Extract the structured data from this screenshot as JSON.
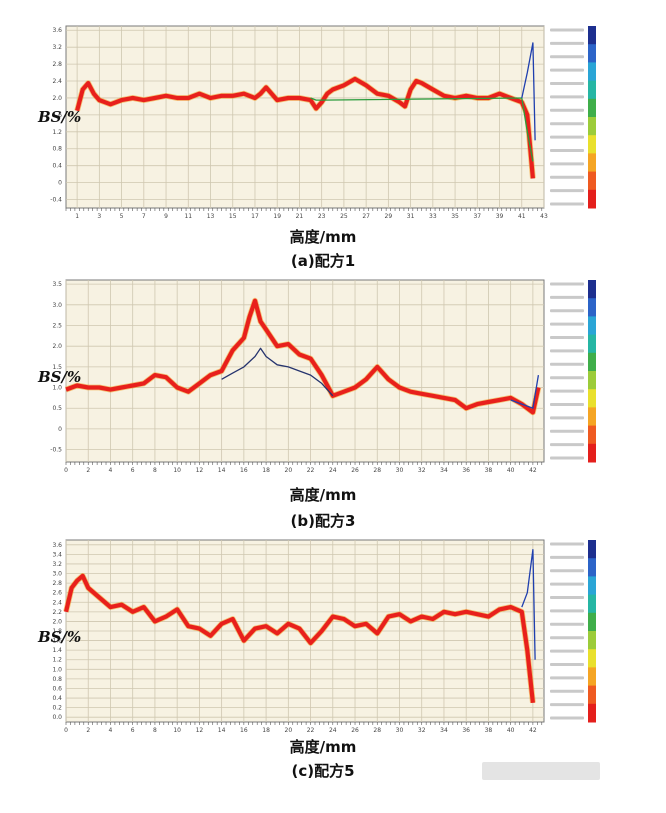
{
  "panels": [
    {
      "caption": "(a)配方1",
      "y_label": "BS/%",
      "x_label": "高度/mm",
      "chart_data": {
        "type": "line",
        "xlim": [
          0,
          43
        ],
        "ylim": [
          -0.6,
          3.7
        ],
        "x_ticks": [
          1,
          3,
          5,
          7,
          9,
          11,
          13,
          15,
          17,
          19,
          21,
          23,
          25,
          27,
          29,
          31,
          33,
          35,
          37,
          39,
          41,
          43
        ],
        "x_tick_labels": [
          "1",
          "3",
          "5",
          "7",
          "9",
          "11",
          "13",
          "15",
          "17",
          "19",
          "21",
          "23",
          "25",
          "27",
          "29",
          "31",
          "33",
          "35",
          "37",
          "39",
          "41",
          "43"
        ],
        "y_ticks": [
          -0.4,
          0,
          0.4,
          0.8,
          1.2,
          1.6,
          2.0,
          2.4,
          2.8,
          3.2,
          3.6
        ],
        "y_tick_labels": [
          "-0.4",
          "0",
          "0.4",
          "0.8",
          "1.2",
          "1.6",
          "2.0",
          "2.4",
          "2.8",
          "3.2",
          "3.6"
        ],
        "series": [
          {
            "color": "#e8201c",
            "x": [
              1,
              1.5,
              2,
              2.5,
              3,
              3.5,
              4,
              5,
              6,
              7,
              8,
              9,
              10,
              11,
              12,
              13,
              14,
              15,
              16,
              17,
              17.5,
              18,
              19,
              20,
              21,
              22,
              22.5,
              23,
              23.5,
              24,
              25,
              26,
              27,
              28,
              29,
              30,
              30.5,
              31,
              31.5,
              32,
              33,
              34,
              35,
              36,
              37,
              38,
              39,
              40,
              41,
              41.5,
              42
            ],
            "y": [
              1.7,
              2.2,
              2.35,
              2.1,
              1.95,
              1.9,
              1.85,
              1.95,
              2.0,
              1.95,
              2.0,
              2.05,
              2.0,
              2.0,
              2.1,
              2.0,
              2.05,
              2.05,
              2.1,
              2.0,
              2.1,
              2.25,
              1.95,
              2.0,
              2.0,
              1.95,
              1.75,
              1.9,
              2.1,
              2.2,
              2.3,
              2.45,
              2.3,
              2.1,
              2.05,
              1.9,
              1.8,
              2.2,
              2.4,
              2.35,
              2.2,
              2.05,
              2.0,
              2.05,
              2.0,
              2.0,
              2.1,
              2.0,
              1.9,
              1.6,
              0.1
            ]
          },
          {
            "color": "#2a9c3c",
            "x": [
              22,
              22.5,
              23,
              41,
              41.5,
              42
            ],
            "y": [
              2.0,
              1.95,
              1.95,
              2.0,
              1.2,
              0.5
            ]
          },
          {
            "color": "#1f3fae",
            "x": [
              41,
              41.5,
              42,
              42.2
            ],
            "y": [
              2.0,
              2.6,
              3.3,
              1.0
            ]
          }
        ]
      }
    },
    {
      "caption": "(b)配方3",
      "y_label": "BS/%",
      "x_label": "高度/mm",
      "chart_data": {
        "type": "line",
        "xlim": [
          0,
          43
        ],
        "ylim": [
          -0.8,
          3.6
        ],
        "x_ticks": [
          0,
          2,
          4,
          6,
          8,
          10,
          12,
          14,
          16,
          18,
          20,
          22,
          24,
          26,
          28,
          30,
          32,
          34,
          36,
          38,
          40,
          42
        ],
        "x_tick_labels": [
          "0",
          "2",
          "4",
          "6",
          "8",
          "10",
          "12",
          "14",
          "16",
          "18",
          "20",
          "22",
          "24",
          "26",
          "28",
          "30",
          "32",
          "34",
          "36",
          "38",
          "40",
          "42"
        ],
        "y_ticks": [
          -0.5,
          0,
          0.5,
          1.0,
          1.5,
          2.0,
          2.5,
          3.0,
          3.5
        ],
        "y_tick_labels": [
          "-0.5",
          "0",
          "0.5",
          "1.0",
          "1.5",
          "2.0",
          "2.5",
          "3.0",
          "3.5"
        ],
        "series": [
          {
            "color": "#e8201c",
            "x": [
              0,
              1,
              2,
              3,
              4,
              5,
              6,
              7,
              8,
              9,
              10,
              11,
              12,
              13,
              14,
              15,
              16,
              16.5,
              17,
              17.5,
              18,
              19,
              20,
              21,
              22,
              23,
              24,
              25,
              26,
              27,
              28,
              29,
              30,
              31,
              32,
              33,
              34,
              35,
              36,
              37,
              38,
              39,
              40,
              41,
              42,
              42.5
            ],
            "y": [
              0.95,
              1.05,
              1.0,
              1.0,
              0.95,
              1.0,
              1.05,
              1.1,
              1.3,
              1.25,
              1.0,
              0.9,
              1.1,
              1.3,
              1.4,
              1.9,
              2.2,
              2.7,
              3.1,
              2.6,
              2.4,
              2.0,
              2.05,
              1.8,
              1.7,
              1.3,
              0.8,
              0.9,
              1.0,
              1.2,
              1.5,
              1.2,
              1.0,
              0.9,
              0.85,
              0.8,
              0.75,
              0.7,
              0.5,
              0.6,
              0.65,
              0.7,
              0.75,
              0.6,
              0.4,
              1.0
            ]
          },
          {
            "color": "#26346e",
            "x": [
              14,
              15,
              16,
              17,
              17.5,
              18,
              19,
              20,
              21,
              22,
              23,
              24
            ],
            "y": [
              1.2,
              1.35,
              1.5,
              1.75,
              1.95,
              1.75,
              1.55,
              1.5,
              1.4,
              1.3,
              1.1,
              0.8
            ]
          },
          {
            "color": "#1f3fae",
            "x": [
              40,
              41,
              42,
              42.5
            ],
            "y": [
              0.7,
              0.6,
              0.5,
              1.3
            ]
          }
        ]
      }
    },
    {
      "caption": "(c)配方5",
      "y_label": "BS/%",
      "x_label": "高度/mm",
      "chart_data": {
        "type": "line",
        "xlim": [
          0,
          43
        ],
        "ylim": [
          -0.1,
          3.7
        ],
        "x_ticks": [
          0,
          2,
          4,
          6,
          8,
          10,
          12,
          14,
          16,
          18,
          20,
          22,
          24,
          26,
          28,
          30,
          32,
          34,
          36,
          38,
          40,
          42
        ],
        "x_tick_labels": [
          "0",
          "2",
          "4",
          "6",
          "8",
          "10",
          "12",
          "14",
          "16",
          "18",
          "20",
          "22",
          "24",
          "26",
          "28",
          "30",
          "32",
          "34",
          "36",
          "38",
          "40",
          "42"
        ],
        "y_ticks": [
          0.0,
          0.2,
          0.4,
          0.6,
          0.8,
          1.0,
          1.2,
          1.4,
          1.6,
          1.8,
          2.0,
          2.2,
          2.4,
          2.6,
          2.8,
          3.0,
          3.2,
          3.4,
          3.6
        ],
        "y_tick_labels": [
          "0.0",
          "0.2",
          "0.4",
          "0.6",
          "0.8",
          "1.0",
          "1.2",
          "1.4",
          "1.6",
          "1.8",
          "2.0",
          "2.2",
          "2.4",
          "2.6",
          "2.8",
          "3.0",
          "3.2",
          "3.4",
          "3.6"
        ],
        "series": [
          {
            "color": "#e8201c",
            "x": [
              0,
              0.5,
              1,
              1.5,
              2,
              3,
              4,
              5,
              6,
              7,
              8,
              9,
              10,
              11,
              12,
              13,
              14,
              15,
              16,
              17,
              18,
              19,
              20,
              21,
              22,
              23,
              24,
              25,
              26,
              27,
              28,
              29,
              30,
              31,
              32,
              33,
              34,
              35,
              36,
              37,
              38,
              39,
              40,
              41,
              41.5,
              42
            ],
            "y": [
              2.2,
              2.7,
              2.85,
              2.95,
              2.7,
              2.5,
              2.3,
              2.35,
              2.2,
              2.3,
              2.0,
              2.1,
              2.25,
              1.9,
              1.85,
              1.7,
              1.95,
              2.05,
              1.6,
              1.85,
              1.9,
              1.75,
              1.95,
              1.85,
              1.55,
              1.8,
              2.1,
              2.05,
              1.9,
              1.95,
              1.75,
              2.1,
              2.15,
              2.0,
              2.1,
              2.05,
              2.2,
              2.15,
              2.2,
              2.15,
              2.1,
              2.25,
              2.3,
              2.2,
              1.4,
              0.3
            ]
          },
          {
            "color": "#1f3fae",
            "x": [
              41,
              41.5,
              42,
              42.2
            ],
            "y": [
              2.3,
              2.6,
              3.5,
              1.2
            ]
          }
        ]
      }
    }
  ]
}
